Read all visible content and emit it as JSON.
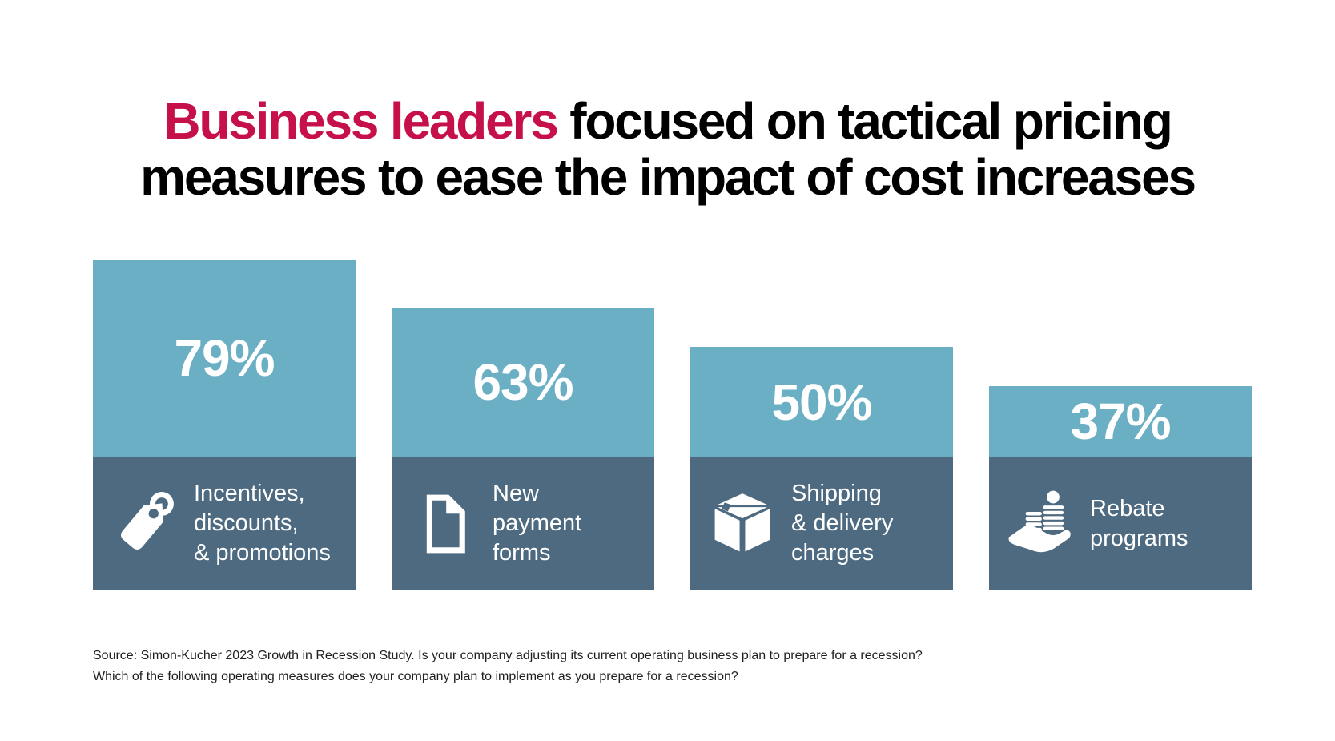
{
  "title": {
    "highlight": "Business leaders",
    "line1_rest": " focused on tactical pricing",
    "line2": "measures to ease the impact of cost increases"
  },
  "bars": [
    {
      "value_label": "79%",
      "icon": "price-tag-icon",
      "label_lines": [
        "Incentives,",
        "discounts,",
        "& promotions"
      ]
    },
    {
      "value_label": "63%",
      "icon": "document-icon",
      "label_lines": [
        "New",
        "payment",
        "forms"
      ]
    },
    {
      "value_label": "50%",
      "icon": "package-box-icon",
      "label_lines": [
        "Shipping",
        "& delivery",
        "charges"
      ]
    },
    {
      "value_label": "37%",
      "icon": "hand-coins-icon",
      "label_lines": [
        "Rebate",
        "programs"
      ]
    }
  ],
  "source": {
    "line1": "Source: Simon-Kucher 2023 Growth in Recession Study. Is your company adjusting its current operating business plan to prepare for a recession?",
    "line2": "Which of the following operating measures does your company plan to implement as you prepare for a recession?"
  },
  "colors": {
    "title_highlight": "#C51049",
    "title_text": "#000000",
    "bar_top": "#6BAFC5",
    "bar_bottom": "#4D6A80",
    "bar_text": "#FFFFFF",
    "source_text": "#1F1F1F",
    "page_bg": "#FFFFFF"
  },
  "chart_data": {
    "type": "bar",
    "title": "Business leaders focused on tactical pricing measures to ease the impact of cost increases",
    "categories": [
      "Incentives, discounts, & promotions",
      "New payment forms",
      "Shipping & delivery charges",
      "Rebate programs"
    ],
    "values": [
      79,
      63,
      50,
      37
    ],
    "unit": "%",
    "data_labels": [
      "79%",
      "63%",
      "50%",
      "37%"
    ],
    "legend": "none",
    "axes": "none",
    "grid": "off",
    "source": "Source: Simon-Kucher 2023 Growth in Recession Study. Is your company adjusting its current operating business plan to prepare for a recession? Which of the following operating measures does your company plan to implement as you prepare for a recession?"
  }
}
